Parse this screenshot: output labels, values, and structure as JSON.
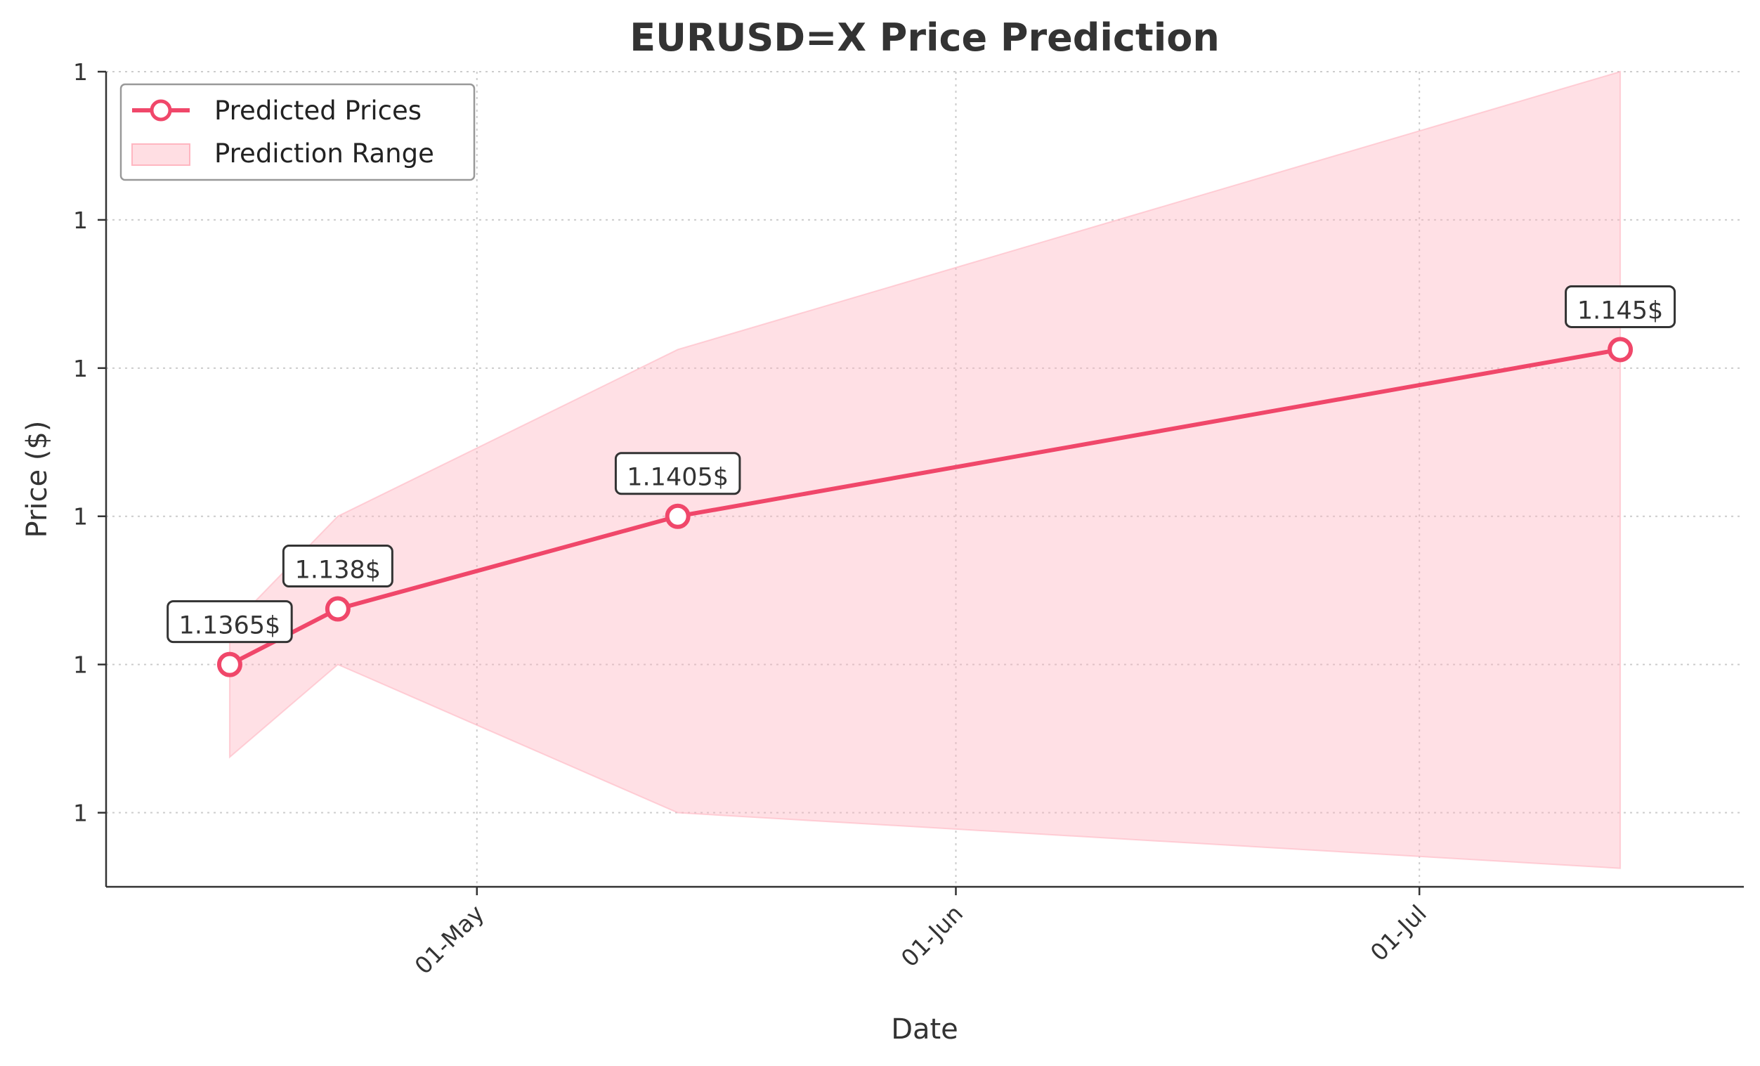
{
  "chart_data": {
    "type": "line",
    "title": "EURUSD=X Price Prediction",
    "xlabel": "Date",
    "ylabel": "Price ($)",
    "x_range": [
      "2025-04-07",
      "2025-07-22"
    ],
    "y_range": [
      1.1305,
      1.1525
    ],
    "x_ticks": [
      {
        "date": "2025-05-01",
        "label": "01-May"
      },
      {
        "date": "2025-06-01",
        "label": "01-Jun"
      },
      {
        "date": "2025-07-01",
        "label": "01-Jul"
      }
    ],
    "y_ticks": [
      {
        "value": 1.1325,
        "label": "1"
      },
      {
        "value": 1.1365,
        "label": "1"
      },
      {
        "value": 1.1405,
        "label": "1"
      },
      {
        "value": 1.1445,
        "label": "1"
      },
      {
        "value": 1.1485,
        "label": "1"
      },
      {
        "value": 1.1525,
        "label": "1"
      }
    ],
    "grid": true,
    "legend_position": "top-left",
    "series": [
      {
        "name": "Predicted Prices",
        "color": "#f0476a",
        "points": [
          {
            "date": "2025-04-15",
            "value": 1.1365,
            "label": "1.1365$"
          },
          {
            "date": "2025-04-22",
            "value": 1.138,
            "label": "1.138$"
          },
          {
            "date": "2025-05-14",
            "value": 1.1405,
            "label": "1.1405$"
          },
          {
            "date": "2025-07-14",
            "value": 1.145,
            "label": "1.145$"
          }
        ]
      }
    ],
    "range_band": {
      "name": "Prediction Range",
      "color": "#ffb6c1",
      "points": [
        {
          "date": "2025-04-15",
          "lower": 1.134,
          "upper": 1.1375
        },
        {
          "date": "2025-04-22",
          "lower": 1.1365,
          "upper": 1.1405
        },
        {
          "date": "2025-05-14",
          "lower": 1.1325,
          "upper": 1.145
        },
        {
          "date": "2025-07-14",
          "lower": 1.131,
          "upper": 1.1525
        }
      ]
    }
  }
}
